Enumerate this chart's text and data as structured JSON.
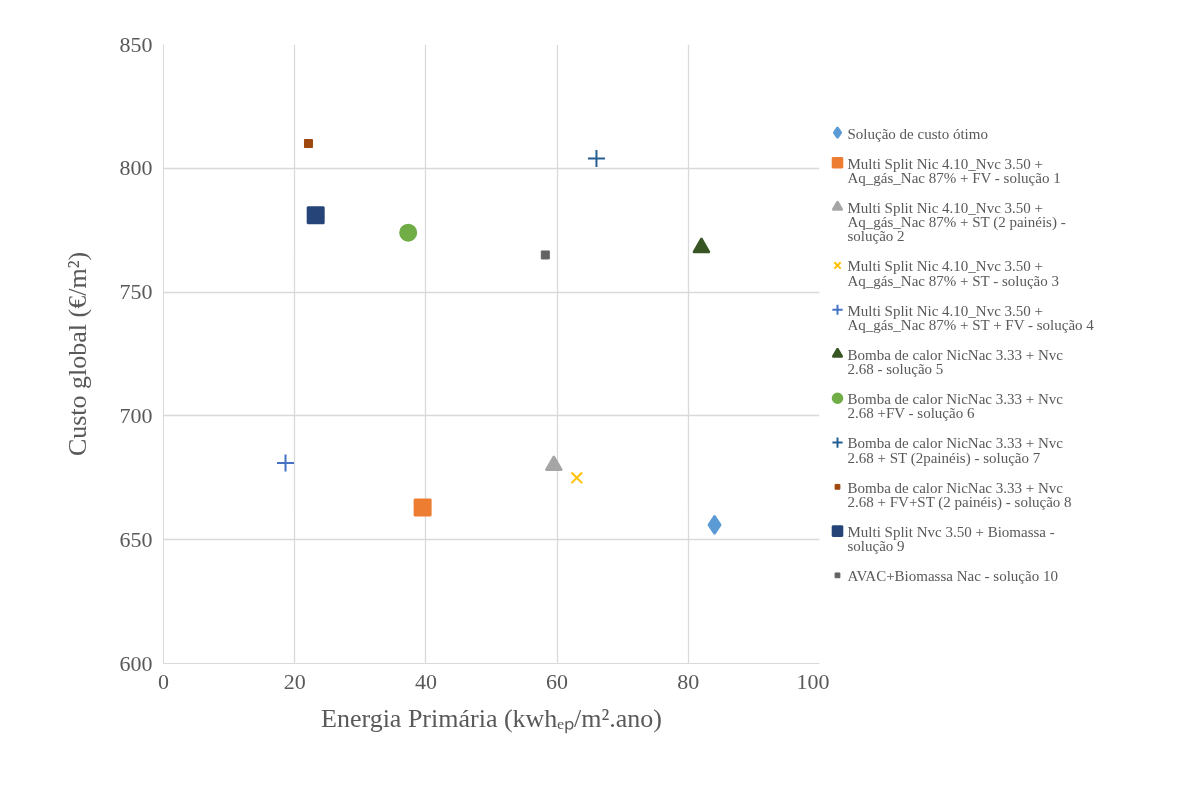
{
  "chart_data": {
    "type": "scatter",
    "xlabel": "Energia Primária (kwhₑₚ/m².ano)",
    "ylabel": "Custo global (€/m²)",
    "xlim": [
      0,
      100
    ],
    "xticks": [
      0,
      20,
      40,
      60,
      80,
      100
    ],
    "ylim": [
      600,
      850
    ],
    "yticks": [
      600,
      650,
      700,
      750,
      800,
      850
    ],
    "grid": true,
    "legend": "right",
    "series": [
      {
        "name": "Solução de custo ótimo",
        "color": "#5b9bd5",
        "marker": "diamond",
        "x": [
          84
        ],
        "values": [
          656
        ]
      },
      {
        "name": "Multi Split Nic 4.10_Nvc 3.50 + Aq_gás_Nac 87% + FV - solução 1",
        "color": "#ed7d31",
        "marker": "square",
        "x": [
          39.5
        ],
        "values": [
          663
        ]
      },
      {
        "name": "Multi Split Nic 4.10_Nvc 3.50 + Aq_gás_Nac 87% + ST (2 painéis) - solução 2",
        "color": "#a5a5a5",
        "marker": "triangle",
        "x": [
          59.5
        ],
        "values": [
          680
        ]
      },
      {
        "name": "Multi Split Nic 4.10_Nvc 3.50 + Aq_gás_Nac 87% + ST - solução 3",
        "color": "#ffc000",
        "marker": "x",
        "x": [
          63
        ],
        "values": [
          675
        ]
      },
      {
        "name": "Multi Split Nic 4.10_Nvc 3.50 + Aq_gás_Nac 87% + ST + FV - solução 4",
        "color": "#4472c4",
        "marker": "cross",
        "x": [
          18.6
        ],
        "values": [
          681
        ]
      },
      {
        "name": "Bomba de calor NicNac 3.33 + Nvc 2.68 - solução 5",
        "color": "#375623",
        "marker": "triangle",
        "x": [
          82
        ],
        "values": [
          768
        ]
      },
      {
        "name": "Bomba de calor NicNac 3.33 + Nvc 2.68 +FV - solução 6",
        "color": "#70ad47",
        "marker": "circle",
        "x": [
          37.3
        ],
        "values": [
          774
        ]
      },
      {
        "name": "Bomba de calor NicNac 3.33 + Nvc 2.68 + ST (2painéis) - solução 7",
        "color": "#255e91",
        "marker": "cross",
        "x": [
          66
        ],
        "values": [
          804
        ]
      },
      {
        "name": "Bomba de calor NicNac 3.33 + Nvc 2.68 + FV+ST (2 painéis) - solução 8",
        "color": "#9e480e",
        "x": [
          22.1
        ],
        "values": [
          810
        ]
      },
      {
        "name": "Multi Split Nvc 3.50 + Biomassa - solução 9",
        "color": "#264478",
        "marker": "square",
        "x": [
          23.2
        ],
        "values": [
          781
        ]
      },
      {
        "name": "AVAC+Biomassa Nac - solução 10",
        "color": "#636363",
        "x": [
          58.2
        ],
        "values": [
          765
        ]
      }
    ]
  }
}
